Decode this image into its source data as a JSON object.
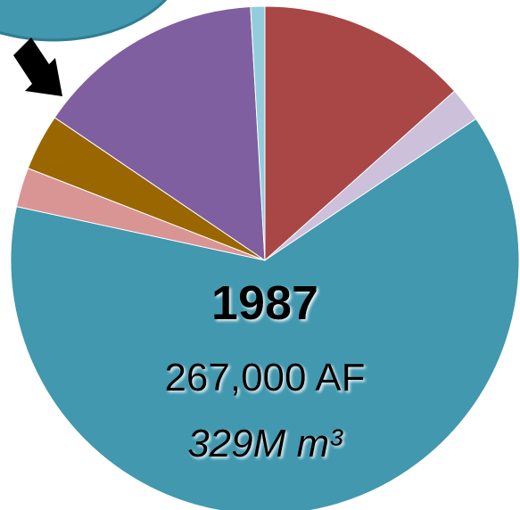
{
  "chart_data": {
    "type": "pie",
    "values": [
      13.4,
      2.2,
      62.8,
      2.5,
      3.6,
      14.6,
      0.9
    ],
    "colors": [
      "#a84745",
      "#ccc0da",
      "#4198af",
      "#d99594",
      "#996600",
      "#7f5f9f",
      "#93cddd"
    ],
    "title": "1987",
    "subtitle": "267,000 AF",
    "annotation": "329M m³"
  }
}
